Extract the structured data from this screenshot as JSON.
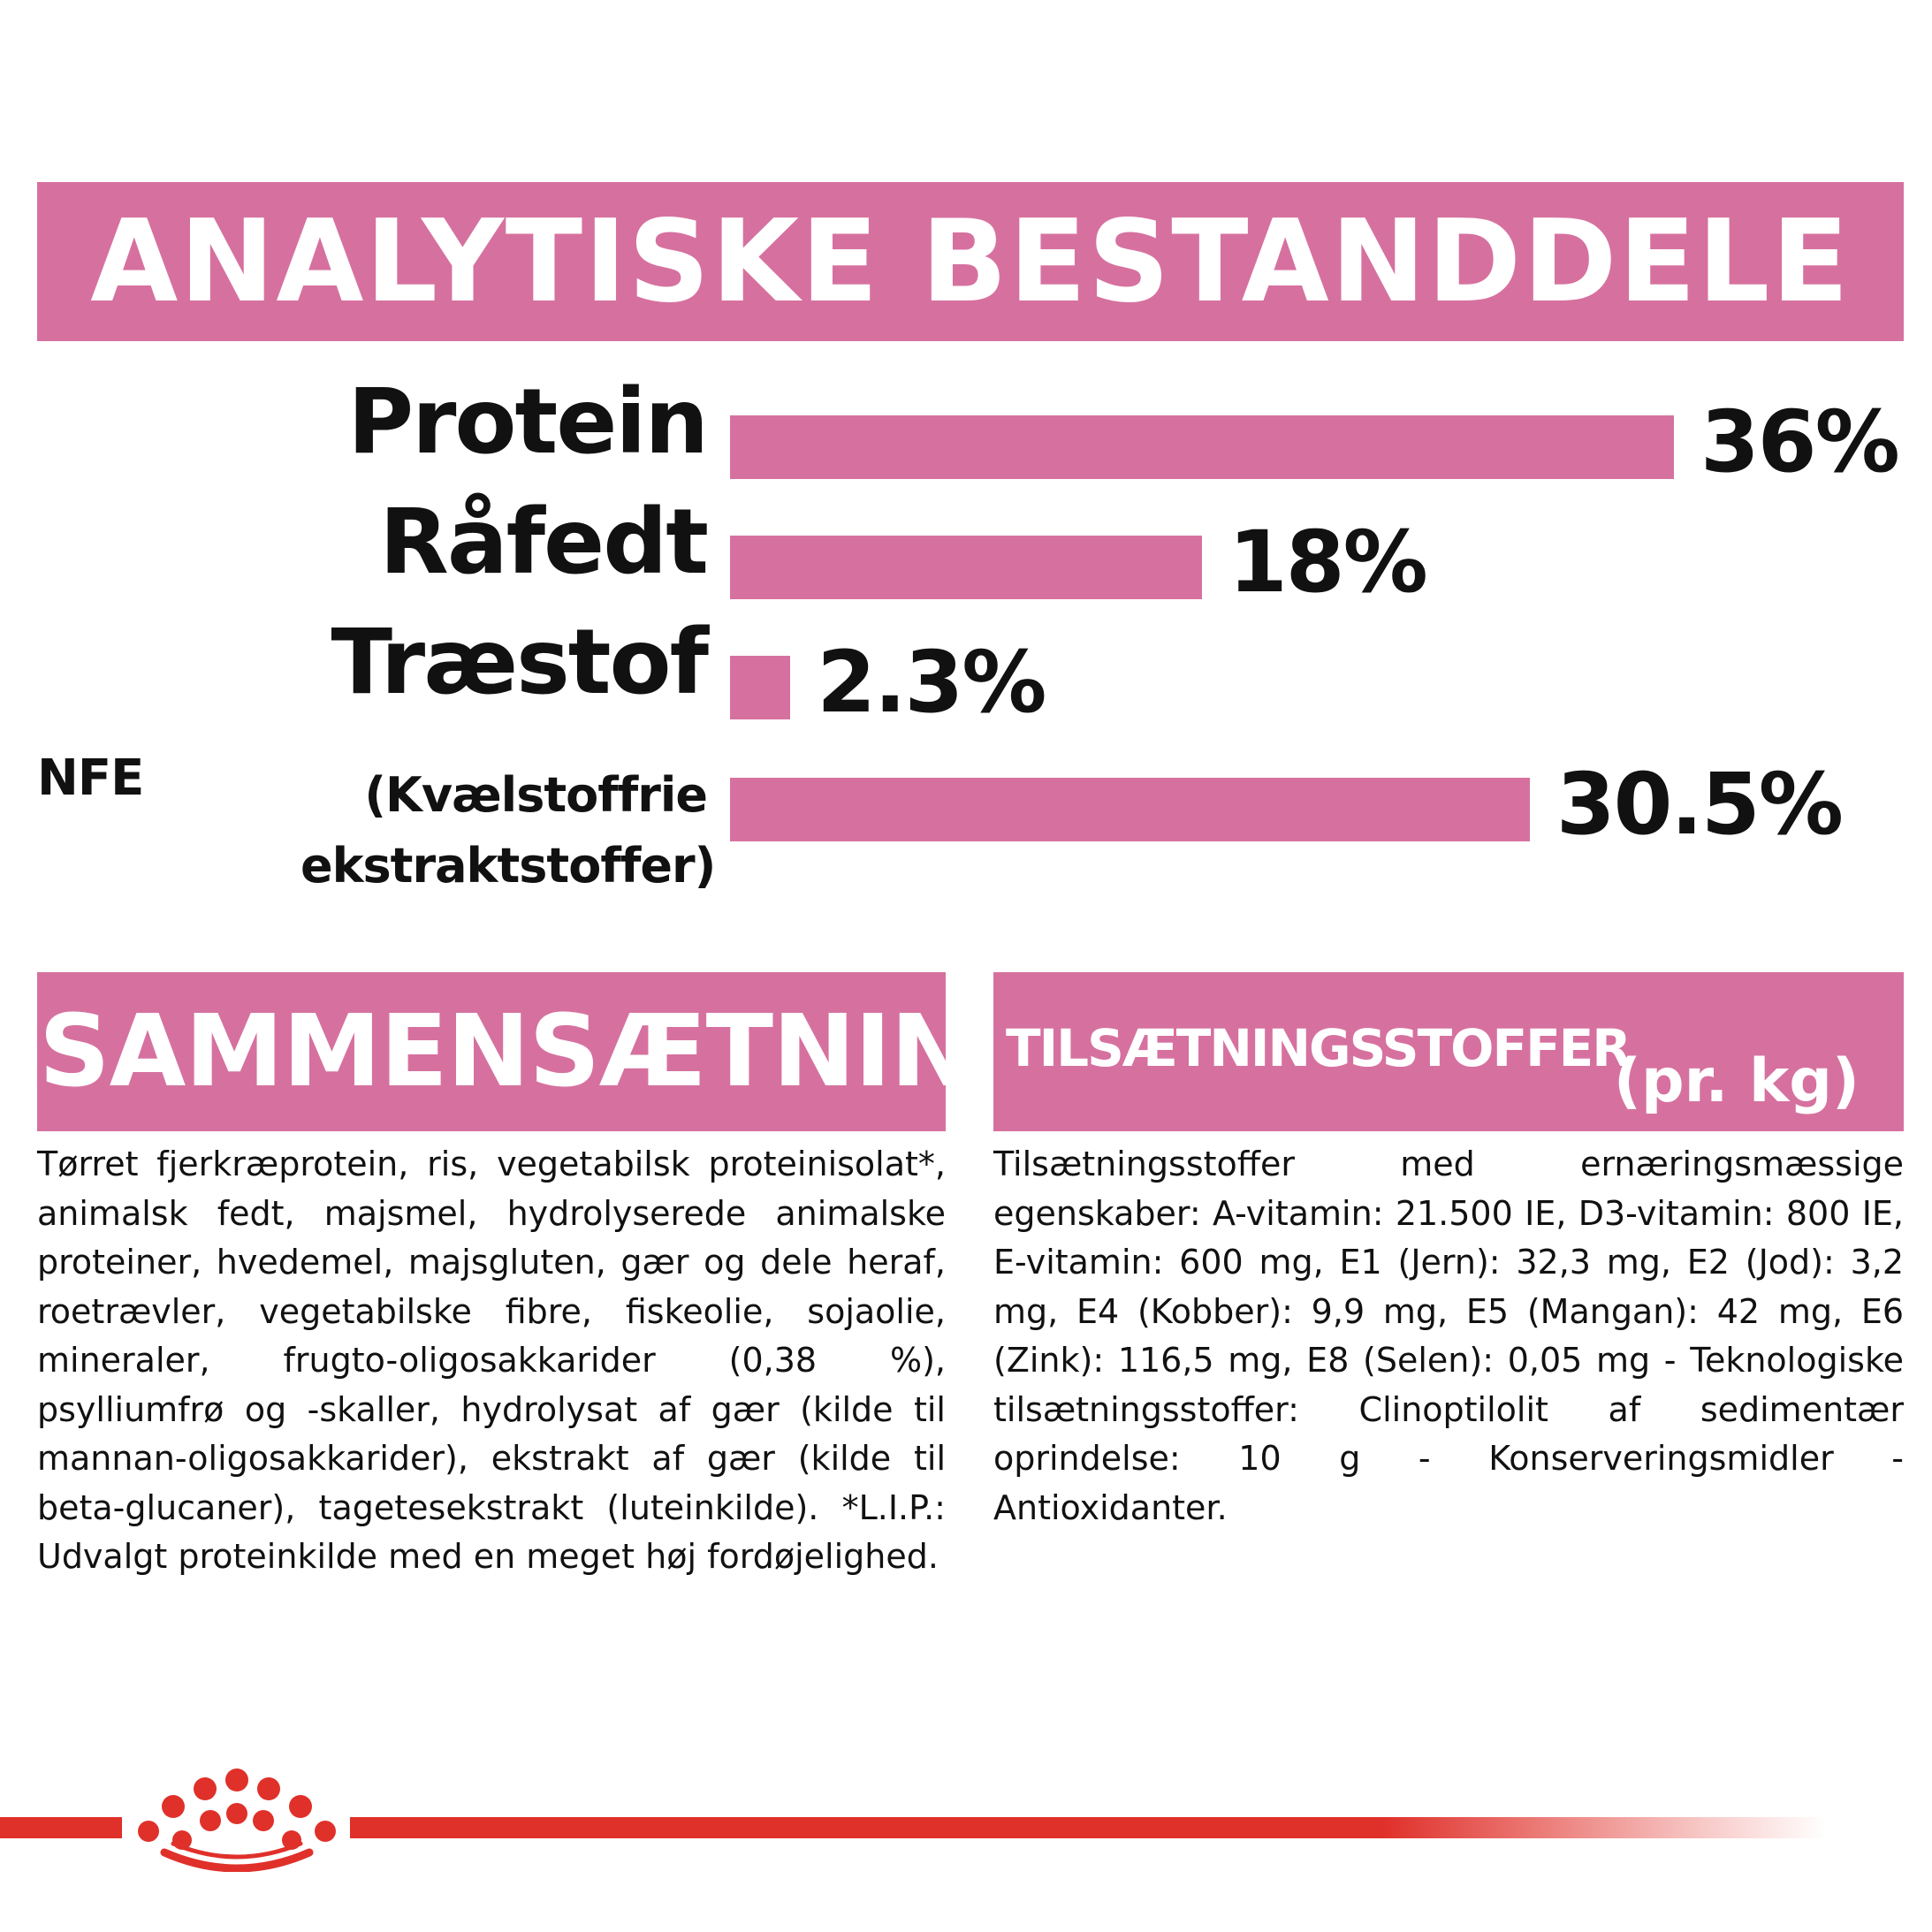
{
  "header": {
    "title": "ANALYTISKE BESTANDDELE"
  },
  "nfe_prefix": "NFE",
  "chart_data": {
    "type": "bar",
    "orientation": "horizontal",
    "categories": [
      "Protein",
      "Råfedt",
      "Træstof",
      "(Kvælstoffrie ekstraktstoffer)"
    ],
    "values": [
      36,
      18,
      2.3,
      30.5
    ],
    "value_labels": [
      "36%",
      "18%",
      "2.3%",
      "30.5%"
    ],
    "unit": "%",
    "bar_color": "#d6719f",
    "xlim": [
      0,
      36
    ],
    "grid": false
  },
  "composition": {
    "title": "SAMMENSÆTNING",
    "text": "Tørret fjerkræprotein, ris, vegetabilsk proteinisolat*, animalsk fedt, majsmel, hydrolyserede animalske proteiner, hvedemel, majsgluten, gær og dele heraf, roetrævler, vegetabilske fibre, fiskeolie, sojaolie, mineraler, frugto-oligosakkarider (0,38 %), psylliumfrø og -skaller, hydrolysat af gær (kilde til mannan-oligosakkarider), ekstrakt af gær (kilde til beta-glucaner), tagetesekstrakt (luteinkilde). *L.I.P.: Udvalgt proteinkilde med en meget høj fordøjelighed."
  },
  "additives": {
    "title": "TILSÆTNINGSSTOFFER",
    "unit": "(pr. kg)",
    "text": "Tilsætningsstoffer med ernæringsmæssige egenskaber: A-vitamin: 21.500 IE, D3-vitamin: 800 IE, E-vitamin: 600 mg, E1 (Jern): 32,3 mg, E2 (Jod): 3,2 mg, E4 (Kobber): 9,9 mg, E5 (Mangan): 42 mg, E6 (Zink): 116,5 mg, E8 (Selen): 0,05 mg - Teknologiske tilsætningsstoffer: Clinoptilolit af sedimentær oprindelse: 10 g - Konserveringsmidler - Antioxidanter."
  },
  "colors": {
    "accent": "#d6719f",
    "brand_red": "#e0302a"
  },
  "footer": {
    "logo_icon": "royal-canin-crown-icon"
  }
}
